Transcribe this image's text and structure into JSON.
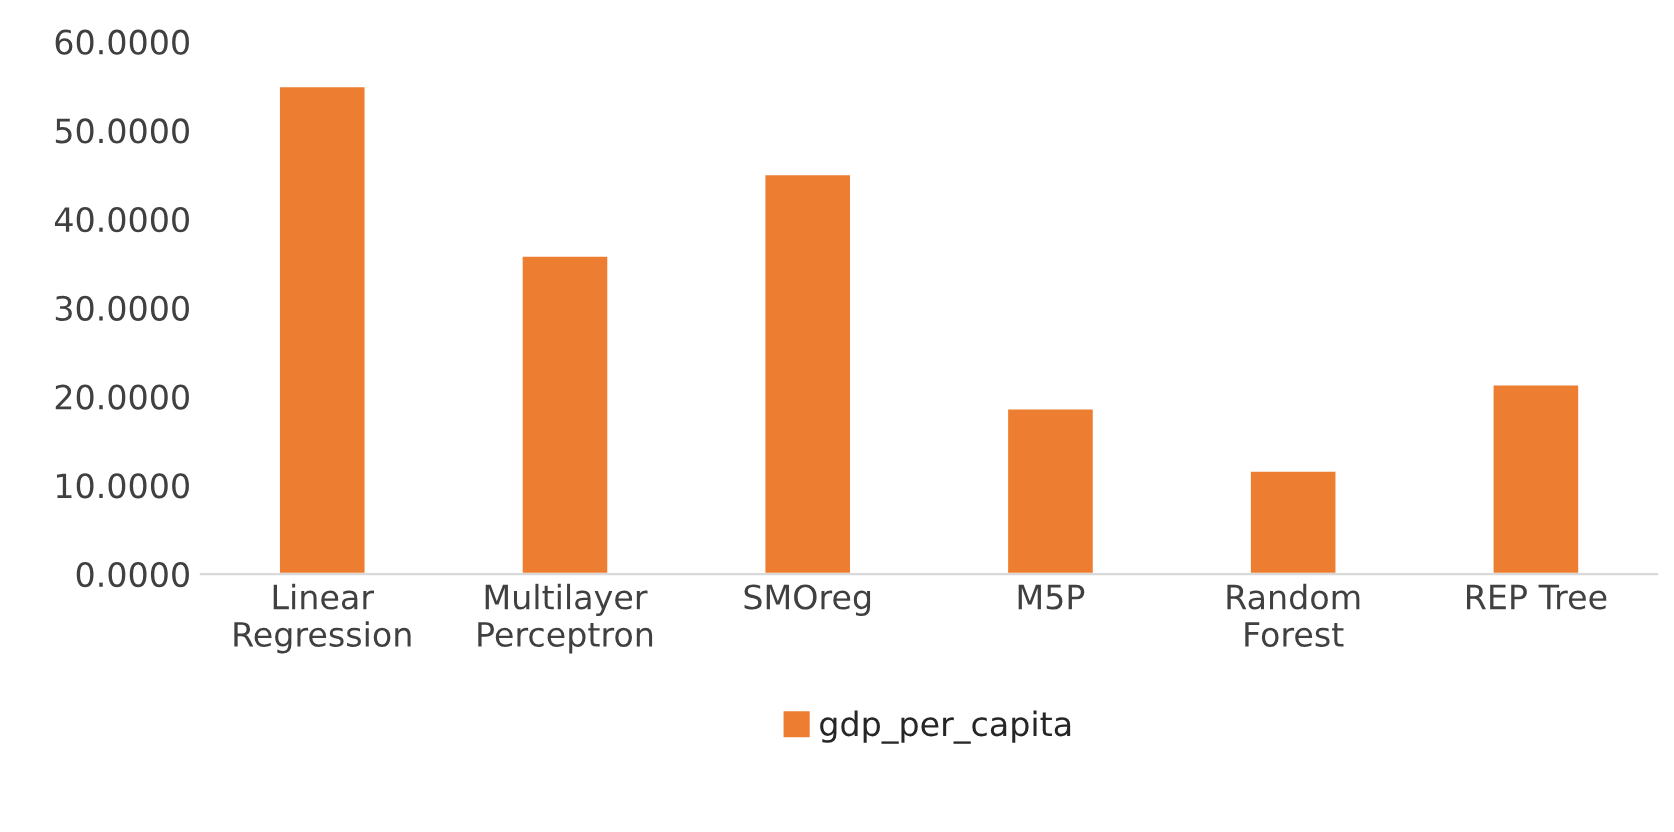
{
  "chart_data": {
    "type": "bar",
    "categories": [
      "Linear\nRegression",
      "Multilayer\nPerceptron",
      "SMOreg",
      "M5P",
      "Random\nForest",
      "REP Tree"
    ],
    "series": [
      {
        "name": "gdp_per_capita",
        "color": "#ed7d31",
        "values": [
          55.0,
          35.9,
          45.1,
          18.7,
          11.7,
          21.4
        ]
      }
    ],
    "ylim": [
      0,
      60
    ],
    "yticks": [
      {
        "value": 0,
        "label": "0.0000"
      },
      {
        "value": 10,
        "label": "10.0000"
      },
      {
        "value": 20,
        "label": "20.0000"
      },
      {
        "value": 30,
        "label": "30.0000"
      },
      {
        "value": 40,
        "label": "40.0000"
      },
      {
        "value": 50,
        "label": "50.0000"
      },
      {
        "value": 60,
        "label": "60.0000"
      }
    ],
    "grid": false,
    "legend": "bottom"
  }
}
